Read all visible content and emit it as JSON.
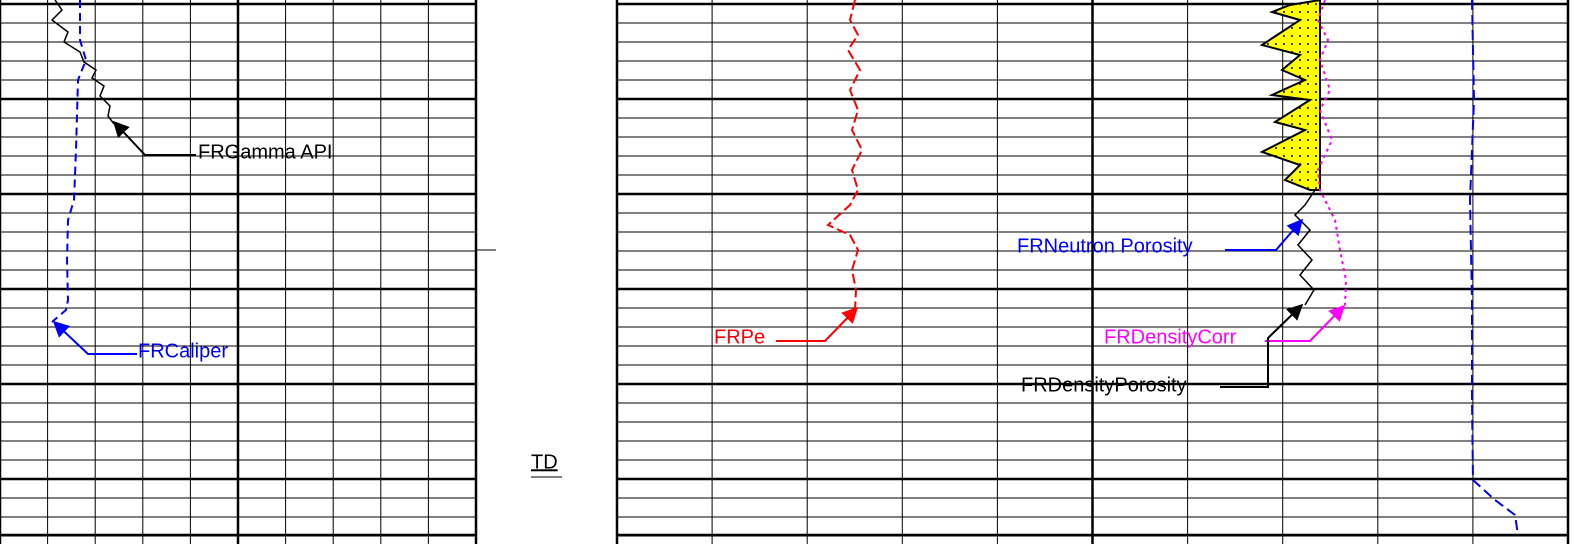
{
  "curve_labels": {
    "gamma": "FRGamma API",
    "caliper": "FRCaliper",
    "pe": "FRPe",
    "neutron": "FRNeutron Porosity",
    "density_corr": "FRDensityCorr",
    "density_porosity": "FRDensityPorosity"
  },
  "depth_track": {
    "marker": "TD"
  }
}
